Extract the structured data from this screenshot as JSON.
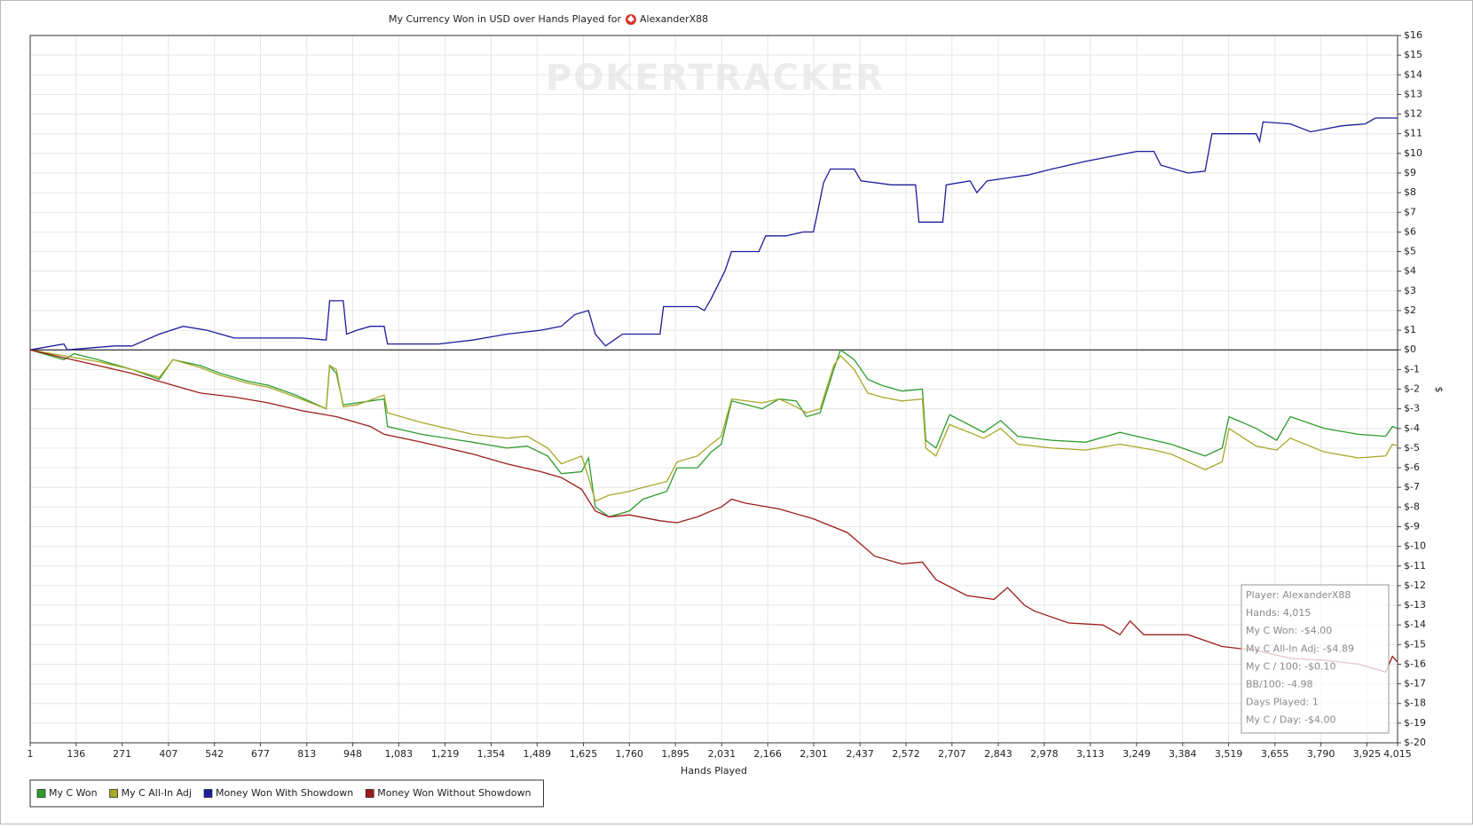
{
  "chart_data": {
    "type": "line",
    "title": "My Currency Won in USD over Hands Played for",
    "player": "AlexanderX88",
    "watermark": "POKERTRACKER",
    "xlabel": "Hands Played",
    "ylabel": "$",
    "xlim": [
      1,
      4015
    ],
    "ylim": [
      -20,
      16
    ],
    "grid": true,
    "legend": "bottom-left",
    "xticks": [
      1,
      136,
      271,
      407,
      542,
      677,
      813,
      948,
      {
        "value": 1083,
        "label": "1,083"
      },
      {
        "value": 1219,
        "label": "1,219"
      },
      {
        "value": 1354,
        "label": "1,354"
      },
      {
        "value": 1489,
        "label": "1,489"
      },
      {
        "value": 1625,
        "label": "1,625"
      },
      {
        "value": 1760,
        "label": "1,760"
      },
      {
        "value": 1895,
        "label": "1,895"
      },
      {
        "value": 2031,
        "label": "2,031"
      },
      {
        "value": 2166,
        "label": "2,166"
      },
      {
        "value": 2301,
        "label": "2,301"
      },
      {
        "value": 2437,
        "label": "2,437"
      },
      {
        "value": 2572,
        "label": "2,572"
      },
      {
        "value": 2707,
        "label": "2,707"
      },
      {
        "value": 2843,
        "label": "2,843"
      },
      {
        "value": 2978,
        "label": "2,978"
      },
      {
        "value": 3113,
        "label": "3,113"
      },
      {
        "value": 3249,
        "label": "3,249"
      },
      {
        "value": 3384,
        "label": "3,384"
      },
      {
        "value": 3519,
        "label": "3,519"
      },
      {
        "value": 3655,
        "label": "3,655"
      },
      {
        "value": 3790,
        "label": "3,790"
      },
      {
        "value": 3925,
        "label": "3,925"
      },
      {
        "value": 4015,
        "label": "4,015"
      }
    ],
    "yticks": [
      {
        "value": 16,
        "label": "$16"
      },
      {
        "value": 15,
        "label": "$15"
      },
      {
        "value": 14,
        "label": "$14"
      },
      {
        "value": 13,
        "label": "$13"
      },
      {
        "value": 12,
        "label": "$12"
      },
      {
        "value": 11,
        "label": "$11"
      },
      {
        "value": 10,
        "label": "$10"
      },
      {
        "value": 9,
        "label": "$9"
      },
      {
        "value": 8,
        "label": "$8"
      },
      {
        "value": 7,
        "label": "$7"
      },
      {
        "value": 6,
        "label": "$6"
      },
      {
        "value": 5,
        "label": "$5"
      },
      {
        "value": 4,
        "label": "$4"
      },
      {
        "value": 3,
        "label": "$3"
      },
      {
        "value": 2,
        "label": "$2"
      },
      {
        "value": 1,
        "label": "$1"
      },
      {
        "value": 0,
        "label": "$0"
      },
      {
        "value": -1,
        "label": "$-1"
      },
      {
        "value": -2,
        "label": "$-2"
      },
      {
        "value": -3,
        "label": "$-3"
      },
      {
        "value": -4,
        "label": "$-4"
      },
      {
        "value": -5,
        "label": "$-5"
      },
      {
        "value": -6,
        "label": "$-6"
      },
      {
        "value": -7,
        "label": "$-7"
      },
      {
        "value": -8,
        "label": "$-8"
      },
      {
        "value": -9,
        "label": "$-9"
      },
      {
        "value": -10,
        "label": "$-10"
      },
      {
        "value": -11,
        "label": "$-11"
      },
      {
        "value": -12,
        "label": "$-12"
      },
      {
        "value": -13,
        "label": "$-13"
      },
      {
        "value": -14,
        "label": "$-14"
      },
      {
        "value": -15,
        "label": "$-15"
      },
      {
        "value": -16,
        "label": "$-16"
      },
      {
        "value": -17,
        "label": "$-17"
      },
      {
        "value": -18,
        "label": "$-18"
      },
      {
        "value": -19,
        "label": "$-19"
      },
      {
        "value": -20,
        "label": "$-20"
      }
    ],
    "info_box": [
      "Player: AlexanderX88",
      "Hands: 4,015",
      "My C Won: -$4.00",
      "My C All-In Adj: -$4.89",
      "My C / 100: -$0.10",
      "BB/100: -4.98",
      "Days Played: 1",
      "My C / Day: -$4.00"
    ],
    "series": [
      {
        "name": "My C Won",
        "color": "#2e9b2e",
        "x": [
          1,
          100,
          130,
          200,
          300,
          380,
          420,
          500,
          560,
          640,
          700,
          780,
          870,
          880,
          900,
          920,
          960,
          1000,
          1040,
          1050,
          1150,
          1300,
          1400,
          1460,
          1520,
          1560,
          1620,
          1640,
          1660,
          1700,
          1760,
          1800,
          1870,
          1900,
          1960,
          2000,
          2030,
          2060,
          2150,
          2200,
          2250,
          2280,
          2320,
          2360,
          2380,
          2420,
          2460,
          2500,
          2560,
          2620,
          2630,
          2660,
          2700,
          2800,
          2850,
          2900,
          3000,
          3100,
          3200,
          3300,
          3350,
          3450,
          3500,
          3520,
          3600,
          3660,
          3700,
          3800,
          3900,
          3980,
          4000,
          4015
        ],
        "values": [
          0,
          -0.5,
          -0.2,
          -0.5,
          -1.0,
          -1.5,
          -0.5,
          -0.8,
          -1.2,
          -1.6,
          -1.8,
          -2.3,
          -3.0,
          -0.8,
          -1.2,
          -2.8,
          -2.7,
          -2.6,
          -2.5,
          -3.9,
          -4.3,
          -4.7,
          -5.0,
          -4.9,
          -5.4,
          -6.3,
          -6.2,
          -5.5,
          -8.0,
          -8.5,
          -8.2,
          -7.6,
          -7.2,
          -6.0,
          -6.0,
          -5.2,
          -4.8,
          -2.6,
          -3.0,
          -2.5,
          -2.6,
          -3.4,
          -3.2,
          -1.0,
          0.0,
          -0.5,
          -1.5,
          -1.8,
          -2.1,
          -2.0,
          -4.6,
          -5.0,
          -3.3,
          -4.2,
          -3.6,
          -4.4,
          -4.6,
          -4.7,
          -4.2,
          -4.6,
          -4.8,
          -5.4,
          -5.0,
          -3.4,
          -4.0,
          -4.6,
          -3.4,
          -4.0,
          -4.3,
          -4.4,
          -3.9,
          -4.0
        ]
      },
      {
        "name": "My C All-In Adj",
        "color": "#a8a828",
        "x": [
          1,
          100,
          200,
          300,
          380,
          420,
          500,
          560,
          640,
          700,
          780,
          870,
          880,
          900,
          920,
          960,
          1040,
          1050,
          1150,
          1300,
          1400,
          1460,
          1520,
          1560,
          1620,
          1640,
          1660,
          1700,
          1760,
          1800,
          1870,
          1900,
          1960,
          2000,
          2030,
          2060,
          2150,
          2200,
          2250,
          2280,
          2320,
          2360,
          2380,
          2420,
          2460,
          2500,
          2560,
          2620,
          2630,
          2660,
          2700,
          2800,
          2850,
          2900,
          3000,
          3100,
          3200,
          3300,
          3350,
          3450,
          3500,
          3520,
          3600,
          3660,
          3700,
          3800,
          3900,
          3980,
          4000,
          4015
        ],
        "values": [
          0,
          -0.3,
          -0.6,
          -1.0,
          -1.4,
          -0.5,
          -0.9,
          -1.3,
          -1.7,
          -1.9,
          -2.4,
          -3.0,
          -0.8,
          -1.0,
          -2.9,
          -2.8,
          -2.3,
          -3.2,
          -3.7,
          -4.3,
          -4.5,
          -4.4,
          -5.0,
          -5.8,
          -5.4,
          -6.5,
          -7.7,
          -7.4,
          -7.2,
          -7.0,
          -6.7,
          -5.7,
          -5.4,
          -4.8,
          -4.4,
          -2.5,
          -2.7,
          -2.5,
          -2.9,
          -3.2,
          -3.0,
          -0.8,
          -0.3,
          -1.0,
          -2.2,
          -2.4,
          -2.6,
          -2.5,
          -5.0,
          -5.4,
          -3.8,
          -4.5,
          -4.0,
          -4.8,
          -5.0,
          -5.1,
          -4.8,
          -5.1,
          -5.3,
          -6.1,
          -5.7,
          -4.0,
          -4.9,
          -5.1,
          -4.5,
          -5.2,
          -5.5,
          -5.4,
          -4.8,
          -4.89
        ]
      },
      {
        "name": "Money Won With Showdown",
        "color": "#1c1c9c",
        "x": [
          1,
          100,
          110,
          250,
          300,
          380,
          450,
          520,
          600,
          800,
          870,
          880,
          920,
          930,
          960,
          1000,
          1040,
          1050,
          1200,
          1300,
          1400,
          1500,
          1560,
          1600,
          1640,
          1660,
          1690,
          1740,
          1850,
          1860,
          1960,
          1980,
          2000,
          2040,
          2060,
          2140,
          2160,
          2220,
          2270,
          2300,
          2310,
          2330,
          2350,
          2420,
          2440,
          2530,
          2600,
          2610,
          2680,
          2690,
          2760,
          2780,
          2810,
          2930,
          3000,
          3100,
          3250,
          3300,
          3320,
          3400,
          3450,
          3470,
          3600,
          3610,
          3620,
          3700,
          3760,
          3850,
          3920,
          3950,
          4015
        ],
        "values": [
          0,
          0.3,
          0,
          0.2,
          0.2,
          0.8,
          1.2,
          1.0,
          0.6,
          0.6,
          0.5,
          2.5,
          2.5,
          0.8,
          1.0,
          1.2,
          1.2,
          0.3,
          0.3,
          0.5,
          0.8,
          1.0,
          1.2,
          1.8,
          2.0,
          0.8,
          0.2,
          0.8,
          0.8,
          2.2,
          2.2,
          2.0,
          2.6,
          4.0,
          5.0,
          5.0,
          5.8,
          5.8,
          6.0,
          6.0,
          6.8,
          8.5,
          9.2,
          9.2,
          8.6,
          8.4,
          8.4,
          6.5,
          6.5,
          8.4,
          8.6,
          8.0,
          8.6,
          8.9,
          9.2,
          9.6,
          10.1,
          10.1,
          9.4,
          9.0,
          9.1,
          11.0,
          11.0,
          10.6,
          11.6,
          11.5,
          11.1,
          11.4,
          11.5,
          11.8,
          11.8
        ]
      },
      {
        "name": "Money Won Without Showdown",
        "color": "#9c1c1c",
        "x": [
          1,
          100,
          200,
          300,
          400,
          500,
          600,
          700,
          800,
          900,
          1000,
          1040,
          1150,
          1300,
          1400,
          1500,
          1560,
          1620,
          1660,
          1700,
          1760,
          1850,
          1900,
          1960,
          2000,
          2030,
          2060,
          2100,
          2200,
          2300,
          2400,
          2480,
          2560,
          2620,
          2660,
          2750,
          2830,
          2870,
          2920,
          2950,
          3050,
          3150,
          3200,
          3230,
          3270,
          3400,
          3500,
          3600,
          3700,
          3800,
          3900,
          3980,
          4000,
          4015
        ],
        "values": [
          0,
          -0.4,
          -0.8,
          -1.2,
          -1.7,
          -2.2,
          -2.4,
          -2.7,
          -3.1,
          -3.4,
          -3.9,
          -4.3,
          -4.7,
          -5.3,
          -5.8,
          -6.2,
          -6.5,
          -7.1,
          -8.2,
          -8.5,
          -8.4,
          -8.7,
          -8.8,
          -8.5,
          -8.2,
          -8.0,
          -7.6,
          -7.8,
          -8.1,
          -8.6,
          -9.3,
          -10.5,
          -10.9,
          -10.8,
          -11.7,
          -12.5,
          -12.7,
          -12.1,
          -13.0,
          -13.3,
          -13.9,
          -14.0,
          -14.5,
          -13.8,
          -14.5,
          -14.5,
          -15.1,
          -15.3,
          -15.7,
          -15.8,
          -16.0,
          -16.4,
          -15.6,
          -15.9
        ]
      }
    ]
  }
}
